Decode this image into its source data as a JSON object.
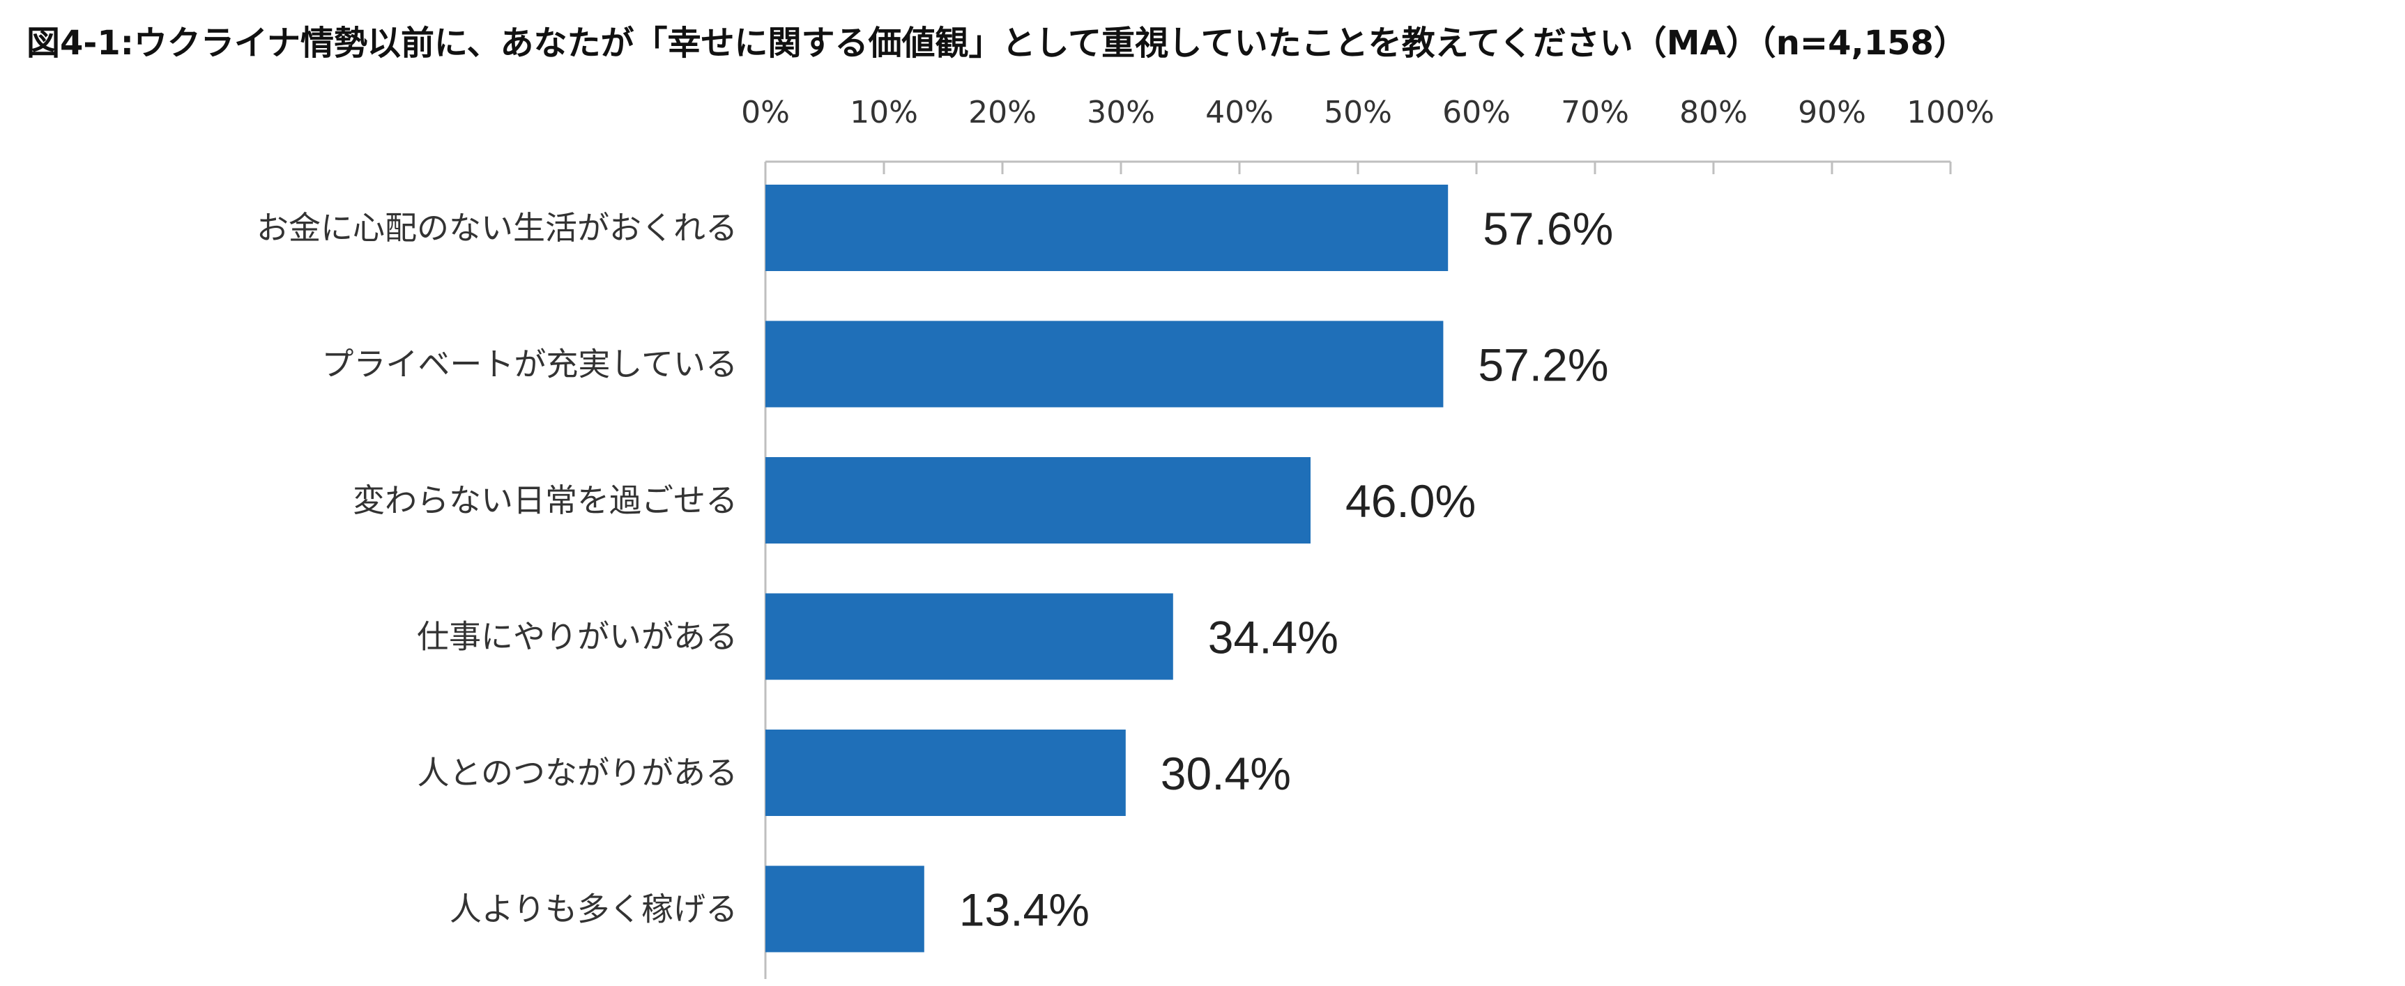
{
  "chart_data": {
    "type": "bar",
    "orientation": "horizontal",
    "title": "図4-1:ウクライナ情勢以前に、あなたが「幸せに関する価値観」として重視していたことを教えてください（MA）（n=4,158）",
    "categories": [
      "お金に心配のない生活がおくれる",
      "プライベートが充実している",
      "変わらない日常を過ごせる",
      "仕事にやりがいがある",
      "人とのつながりがある",
      "人よりも多く稼げる"
    ],
    "values": [
      57.6,
      57.2,
      46.0,
      34.4,
      30.4,
      13.4
    ],
    "value_labels": [
      "57.6%",
      "57.2%",
      "46.0%",
      "34.4%",
      "30.4%",
      "13.4%"
    ],
    "xlim": [
      0,
      100
    ],
    "x_ticks": [
      0,
      10,
      20,
      30,
      40,
      50,
      60,
      70,
      80,
      90,
      100
    ],
    "x_tick_labels": [
      "0%",
      "10%",
      "20%",
      "30%",
      "40%",
      "50%",
      "60%",
      "70%",
      "80%",
      "90%",
      "100%"
    ],
    "x_axis_position": "top",
    "grid": false,
    "legend": "none",
    "bar_color": "#1f6fb8"
  }
}
